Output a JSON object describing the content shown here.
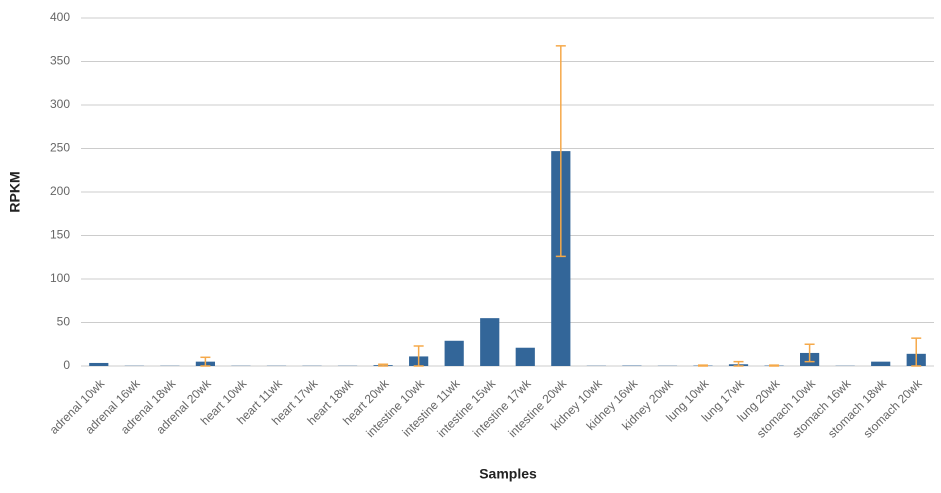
{
  "chart_data": {
    "type": "bar",
    "x_label": "Samples",
    "y_label": "RPKM",
    "categories": [
      "adrenal 10wk",
      "adrenal 16wk",
      "adrenal 18wk",
      "adrenal 20wk",
      "heart 10wk",
      "heart 11wk",
      "heart 17wk",
      "heart 18wk",
      "heart 20wk",
      "intestine 10wk",
      "intestine 11wk",
      "intestine 15wk",
      "intestine 17wk",
      "intestine 20wk",
      "kidney 10wk",
      "kidney 16wk",
      "kidney 20wk",
      "lung 10wk",
      "lung 17wk",
      "lung 20wk",
      "stomach 10wk",
      "stomach 16wk",
      "stomach 18wk",
      "stomach 20wk"
    ],
    "values": [
      3.5,
      0.3,
      0.3,
      5,
      0.3,
      0.3,
      0.3,
      0.3,
      1,
      11,
      29,
      55,
      21,
      247,
      0.3,
      0.5,
      0.3,
      0.5,
      2,
      0.5,
      15,
      0.3,
      5,
      14
    ],
    "errors": [
      null,
      null,
      null,
      5,
      null,
      null,
      null,
      null,
      1,
      12,
      null,
      null,
      null,
      121,
      null,
      null,
      null,
      0.5,
      3,
      0.5,
      10,
      null,
      null,
      18
    ],
    "color": "#336699",
    "error_color": "#f5a94a",
    "ylim": [
      0,
      400
    ],
    "yticks": [
      0,
      50,
      100,
      150,
      200,
      250,
      300,
      350,
      400
    ],
    "grid": true
  }
}
